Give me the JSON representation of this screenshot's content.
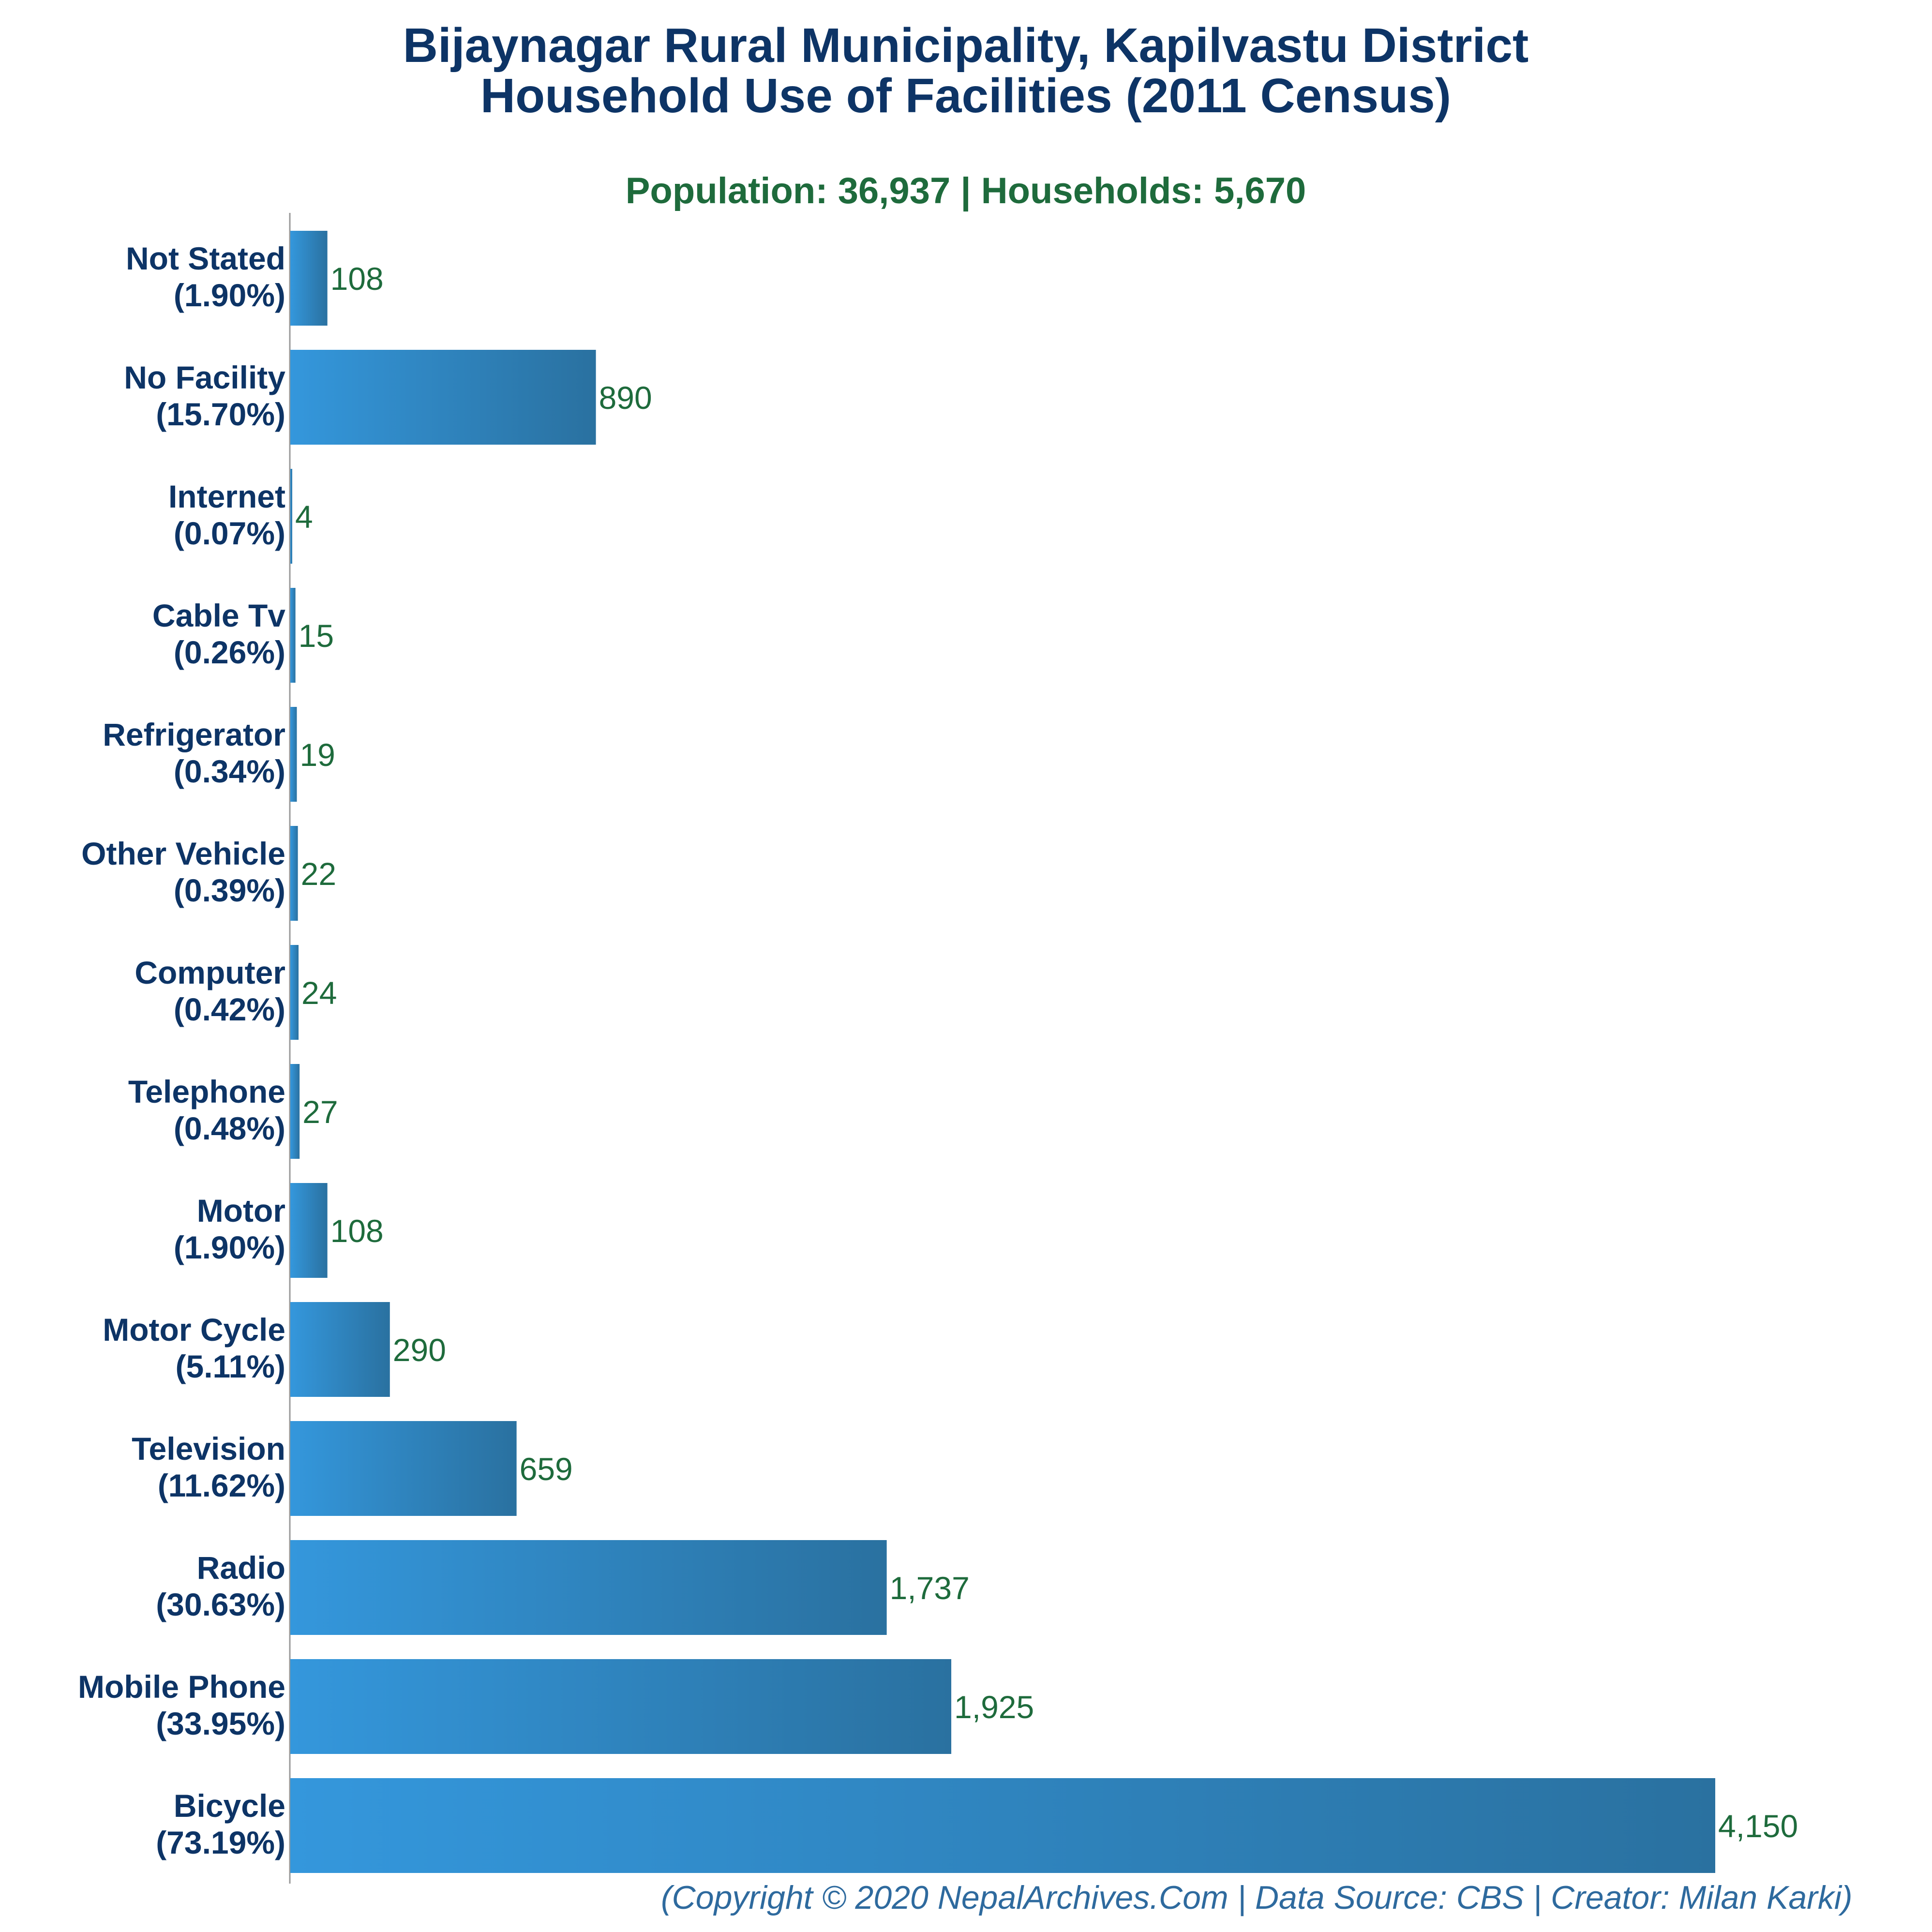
{
  "chart_data": {
    "type": "bar",
    "orientation": "horizontal",
    "title_line1": "Bijaynagar Rural Municipality, Kapilvastu District",
    "title_line2": "Household Use of Facilities (2011 Census)",
    "subtitle": "Population: 36,937 | Households: 5,670",
    "footer": "(Copyright © 2020 NepalArchives.Com | Data Source: CBS | Creator: Milan Karki)",
    "categories": [
      "Not Stated",
      "No Facility",
      "Internet",
      "Cable Tv",
      "Refrigerator",
      "Other Vehicle",
      "Computer",
      "Telephone",
      "Motor",
      "Motor Cycle",
      "Television",
      "Radio",
      "Mobile Phone",
      "Bicycle"
    ],
    "percent_labels": [
      "(1.90%)",
      "(15.70%)",
      "(0.07%)",
      "(0.26%)",
      "(0.34%)",
      "(0.39%)",
      "(0.42%)",
      "(0.48%)",
      "(1.90%)",
      "(5.11%)",
      "(11.62%)",
      "(30.63%)",
      "(33.95%)",
      "(73.19%)"
    ],
    "values": [
      108,
      890,
      4,
      15,
      19,
      22,
      24,
      27,
      108,
      290,
      659,
      1737,
      1925,
      4150
    ],
    "value_labels": [
      "108",
      "890",
      "4",
      "15",
      "19",
      "22",
      "24",
      "27",
      "108",
      "290",
      "659",
      "1,737",
      "1,925",
      "4,150"
    ],
    "xlim": [
      0,
      4150
    ],
    "grid": false,
    "colors": {
      "bar_light": "#3497dc",
      "bar_dark": "#2a71a0",
      "title": "#0d3466",
      "subtitle": "#1e6b3c",
      "value": "#1e6b3c",
      "footer": "#2e6a9e",
      "axis": "#999999"
    }
  }
}
